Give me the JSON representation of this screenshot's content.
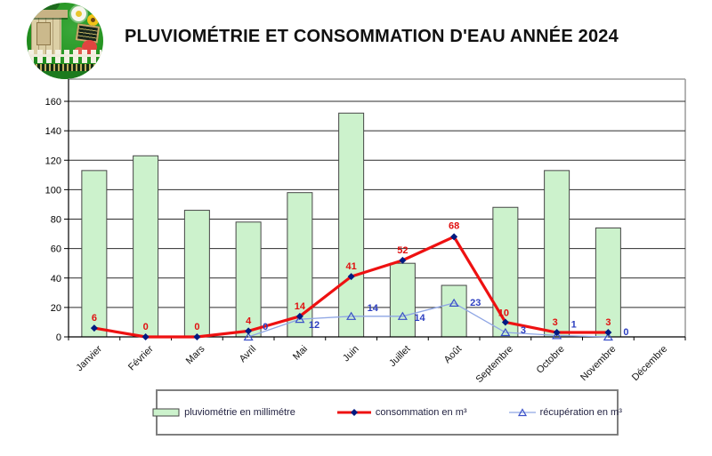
{
  "page": {
    "title": "PLUVIOMÉTRIE ET CONSOMMATION D'EAU ANNÉE 2024"
  },
  "logo": {
    "description": "round garden-club emblem with cabin, flowers, blackboard, apple and white picket fence"
  },
  "chart_data": {
    "type": "bar",
    "subtype": "bar-line-combo",
    "title": "PLUVIOMÉTRIE ET CONSOMMATION D'EAU ANNÉE 2024",
    "categories": [
      "Janvier",
      "Février",
      "Mars",
      "Avril",
      "Mai",
      "Juin",
      "Juillet",
      "Août",
      "Septembre",
      "Octobre",
      "Novembre",
      "Décembre"
    ],
    "series": [
      {
        "name": "pluviométrie en millimétre",
        "type": "bar",
        "color": "#ccf2cc",
        "border_color": "#464646",
        "values": [
          113,
          123,
          86,
          78,
          98,
          152,
          50,
          35,
          88,
          113,
          74,
          0
        ]
      },
      {
        "name": "consommation en m³",
        "type": "line",
        "color": "#ee1111",
        "marker": "diamond",
        "marker_color": "#001a80",
        "label_color": "#e01010",
        "values": [
          6,
          0,
          0,
          4,
          14,
          41,
          52,
          68,
          10,
          3,
          3,
          null
        ],
        "label_dx": [
          0,
          0,
          0,
          0,
          0,
          0,
          0,
          0,
          -2,
          -2,
          0,
          null
        ],
        "label_dy": [
          -8,
          -8,
          -8,
          -8,
          -8,
          -8,
          -8,
          -9,
          -7,
          -8,
          -8,
          null
        ]
      },
      {
        "name": "récupération en m³",
        "type": "line",
        "color": "#8fa6e4",
        "marker": "triangle-open",
        "marker_color": "#3a50c8",
        "label_color": "#2d3fc0",
        "values": [
          null,
          null,
          null,
          0,
          12,
          14,
          14,
          23,
          3,
          1,
          0,
          null
        ],
        "label_dx": [
          null,
          null,
          null,
          16,
          10,
          18,
          13,
          18,
          17,
          16,
          17,
          null
        ],
        "label_dy": [
          null,
          null,
          null,
          -8,
          10,
          -6,
          5,
          3,
          1,
          -9,
          -2,
          null
        ]
      }
    ],
    "ylim": [
      0,
      160
    ],
    "ytick_step": 20,
    "yticks": [
      0,
      20,
      40,
      60,
      80,
      100,
      120,
      140,
      160
    ],
    "grid": true,
    "xlabel": "",
    "ylabel": "",
    "x_label_rotation": -45,
    "legend_position": "bottom"
  }
}
